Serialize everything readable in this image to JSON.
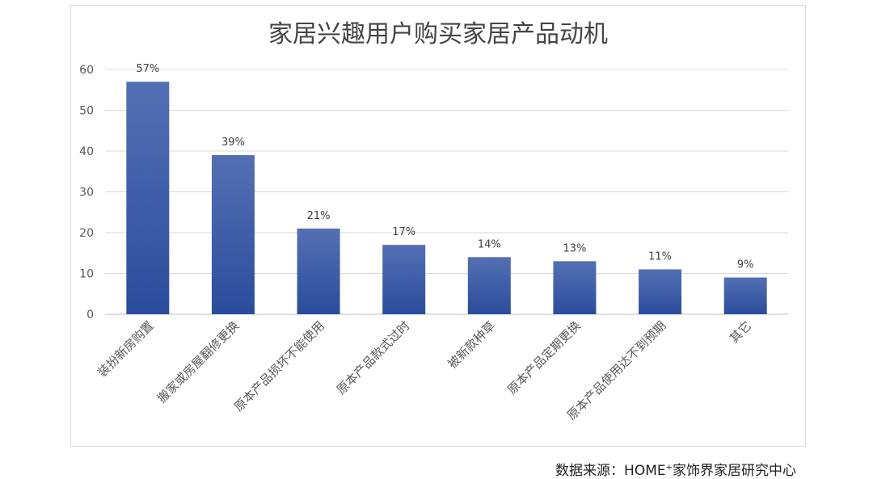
{
  "chart_data": {
    "type": "bar",
    "title": "家居兴趣用户购买家居产品动机",
    "categories": [
      "装扮新房购置",
      "搬家或房屋翻修更换",
      "原本产品损坏不能使用",
      "原本产品款式过时",
      "被新款种草",
      "原本产品定期更换",
      "原本产品使用达不到预期",
      "其它"
    ],
    "values": [
      57,
      39,
      21,
      17,
      14,
      13,
      11,
      9
    ],
    "data_labels": [
      "57%",
      "39%",
      "21%",
      "17%",
      "14%",
      "13%",
      "11%",
      "9%"
    ],
    "ylim": [
      0,
      60
    ],
    "yticks": [
      0,
      10,
      20,
      30,
      40,
      50,
      60
    ],
    "grid": true,
    "bar_color_top": "#5470b4",
    "bar_color_bottom": "#2b4c9c"
  },
  "source": {
    "prefix": "数据来源：HOME",
    "sup": "+",
    "suffix": "家饰界家居研究中心"
  }
}
